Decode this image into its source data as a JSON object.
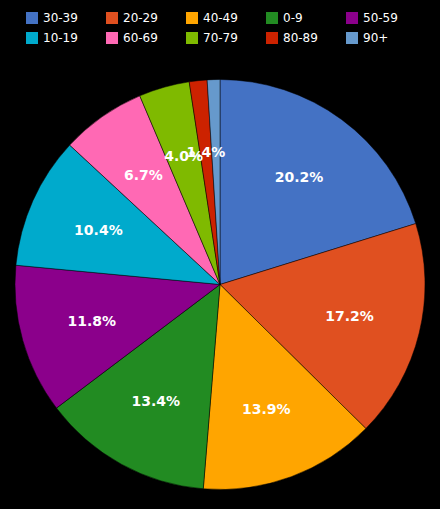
{
  "chart_data": {
    "type": "pie",
    "categories": [
      "30-39",
      "20-29",
      "40-49",
      "0-9",
      "50-59",
      "10-19",
      "60-69",
      "70-79",
      "80-89",
      "90+"
    ],
    "values": [
      20.2,
      17.2,
      13.9,
      13.4,
      11.8,
      10.4,
      6.7,
      4.0,
      1.4,
      1.0
    ],
    "value_labels": [
      "20.2%",
      "17.2%",
      "13.9%",
      "13.4%",
      "11.8%",
      "10.4%",
      "6.7%",
      "4.0%",
      "1.4%",
      null
    ],
    "colors": [
      "#4472C4",
      "#E05020",
      "#FFA500",
      "#228B22",
      "#8B008B",
      "#00AACC",
      "#FF69B4",
      "#7FBA00",
      "#CC2200",
      "#6699CC"
    ],
    "data_labels": true,
    "legend": "top"
  }
}
